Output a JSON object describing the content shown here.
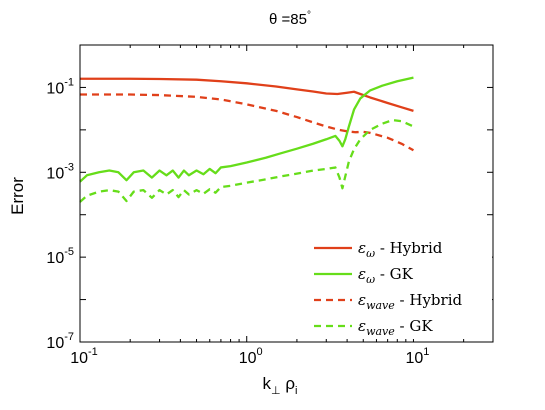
{
  "chart_data": {
    "type": "line",
    "title": "θ =85°",
    "title_parts": {
      "prefix": "θ =85",
      "degree": "°"
    },
    "xlabel": {
      "base": "k",
      "sub1": "⊥",
      "mid": " ρ",
      "sub2": "i"
    },
    "ylabel": "Error",
    "xscale": "log",
    "yscale": "log",
    "xlim": [
      0.1,
      30
    ],
    "ylim": [
      1e-07,
      1
    ],
    "x_ticks": [
      {
        "value": 0.1,
        "base": "10",
        "exp": "-1"
      },
      {
        "value": 1,
        "base": "10",
        "exp": "0"
      },
      {
        "value": 10,
        "base": "10",
        "exp": "1"
      }
    ],
    "y_ticks": [
      {
        "value": 1e-07,
        "base": "10",
        "exp": "-7"
      },
      {
        "value": 1e-05,
        "base": "10",
        "exp": "-5"
      },
      {
        "value": 0.001,
        "base": "10",
        "exp": "-3"
      },
      {
        "value": 0.1,
        "base": "10",
        "exp": "-1"
      }
    ],
    "grid": false,
    "legend": "bottom-right",
    "series": [
      {
        "name": "ε_ω - Hybrid",
        "legend_parts": {
          "sym": "ε",
          "sub": "ω",
          "rest": " - Hybrid"
        },
        "color": "#e0401a",
        "dash": "solid",
        "points": [
          [
            0.1,
            0.16
          ],
          [
            0.2,
            0.16
          ],
          [
            0.3,
            0.158
          ],
          [
            0.5,
            0.152
          ],
          [
            0.7,
            0.14
          ],
          [
            1.0,
            0.125
          ],
          [
            1.5,
            0.105
          ],
          [
            2.0,
            0.09
          ],
          [
            2.5,
            0.08
          ],
          [
            3.0,
            0.072
          ],
          [
            3.5,
            0.07
          ],
          [
            4.0,
            0.075
          ],
          [
            4.4,
            0.079
          ],
          [
            4.8,
            0.07
          ],
          [
            5.5,
            0.058
          ],
          [
            7.0,
            0.043
          ],
          [
            8.5,
            0.034
          ],
          [
            10.0,
            0.028
          ]
        ]
      },
      {
        "name": "ε_ω - GK",
        "legend_parts": {
          "sym": "ε",
          "sub": "ω",
          "rest": " - GK"
        },
        "color": "#66dd1a",
        "dash": "solid",
        "points": [
          [
            0.1,
            0.0006
          ],
          [
            0.11,
            0.00085
          ],
          [
            0.13,
            0.001
          ],
          [
            0.15,
            0.0011
          ],
          [
            0.17,
            0.001
          ],
          [
            0.19,
            0.00065
          ],
          [
            0.21,
            0.001
          ],
          [
            0.24,
            0.0011
          ],
          [
            0.27,
            0.00075
          ],
          [
            0.3,
            0.0011
          ],
          [
            0.33,
            0.00085
          ],
          [
            0.36,
            0.0011
          ],
          [
            0.39,
            0.00075
          ],
          [
            0.42,
            0.0011
          ],
          [
            0.45,
            0.00085
          ],
          [
            0.5,
            0.0011
          ],
          [
            0.55,
            0.0009
          ],
          [
            0.6,
            0.0012
          ],
          [
            0.65,
            0.00095
          ],
          [
            0.7,
            0.0013
          ],
          [
            0.8,
            0.0014
          ],
          [
            1.0,
            0.0017
          ],
          [
            1.3,
            0.0022
          ],
          [
            1.6,
            0.0028
          ],
          [
            2.0,
            0.0036
          ],
          [
            2.5,
            0.0047
          ],
          [
            3.0,
            0.006
          ],
          [
            3.4,
            0.0072
          ],
          [
            3.6,
            0.0055
          ],
          [
            3.75,
            0.0041
          ],
          [
            3.9,
            0.006
          ],
          [
            4.1,
            0.012
          ],
          [
            4.4,
            0.03
          ],
          [
            4.8,
            0.055
          ],
          [
            5.5,
            0.085
          ],
          [
            6.5,
            0.11
          ],
          [
            8.0,
            0.14
          ],
          [
            10.0,
            0.17
          ]
        ]
      },
      {
        "name": "ε_wave - Hybrid",
        "legend_parts": {
          "sym": "ε",
          "sub": "wave",
          "rest": " - Hybrid"
        },
        "color": "#e0401a",
        "dash": "dashed",
        "points": [
          [
            0.1,
            0.068
          ],
          [
            0.2,
            0.068
          ],
          [
            0.3,
            0.066
          ],
          [
            0.5,
            0.06
          ],
          [
            0.7,
            0.052
          ],
          [
            1.0,
            0.04
          ],
          [
            1.5,
            0.028
          ],
          [
            2.0,
            0.02
          ],
          [
            2.5,
            0.015
          ],
          [
            3.0,
            0.012
          ],
          [
            3.5,
            0.0102
          ],
          [
            4.0,
            0.0092
          ],
          [
            4.5,
            0.0088
          ],
          [
            5.0,
            0.009
          ],
          [
            5.5,
            0.0085
          ],
          [
            7.0,
            0.0065
          ],
          [
            8.5,
            0.0047
          ],
          [
            10.0,
            0.0033
          ]
        ]
      },
      {
        "name": "ε_wave - GK",
        "legend_parts": {
          "sym": "ε",
          "sub": "wave",
          "rest": " - GK"
        },
        "color": "#66dd1a",
        "dash": "dashed",
        "points": [
          [
            0.1,
            0.0002
          ],
          [
            0.11,
            0.00028
          ],
          [
            0.13,
            0.00035
          ],
          [
            0.15,
            0.00038
          ],
          [
            0.17,
            0.00035
          ],
          [
            0.19,
            0.00021
          ],
          [
            0.21,
            0.00035
          ],
          [
            0.24,
            0.00038
          ],
          [
            0.27,
            0.00025
          ],
          [
            0.3,
            0.00038
          ],
          [
            0.33,
            0.0003
          ],
          [
            0.36,
            0.00038
          ],
          [
            0.39,
            0.00026
          ],
          [
            0.42,
            0.00038
          ],
          [
            0.45,
            0.0003
          ],
          [
            0.5,
            0.00038
          ],
          [
            0.55,
            0.00031
          ],
          [
            0.6,
            0.0004
          ],
          [
            0.65,
            0.00033
          ],
          [
            0.7,
            0.00045
          ],
          [
            0.8,
            0.00048
          ],
          [
            1.0,
            0.00057
          ],
          [
            1.3,
            0.00068
          ],
          [
            1.6,
            0.0008
          ],
          [
            2.0,
            0.00093
          ],
          [
            2.5,
            0.0011
          ],
          [
            3.0,
            0.0012
          ],
          [
            3.4,
            0.0013
          ],
          [
            3.6,
            0.00075
          ],
          [
            3.75,
            0.00042
          ],
          [
            3.9,
            0.0008
          ],
          [
            4.1,
            0.0018
          ],
          [
            4.4,
            0.0035
          ],
          [
            4.8,
            0.006
          ],
          [
            5.5,
            0.01
          ],
          [
            6.5,
            0.014
          ],
          [
            7.5,
            0.017
          ],
          [
            8.5,
            0.016
          ],
          [
            10.0,
            0.012
          ]
        ]
      }
    ]
  }
}
